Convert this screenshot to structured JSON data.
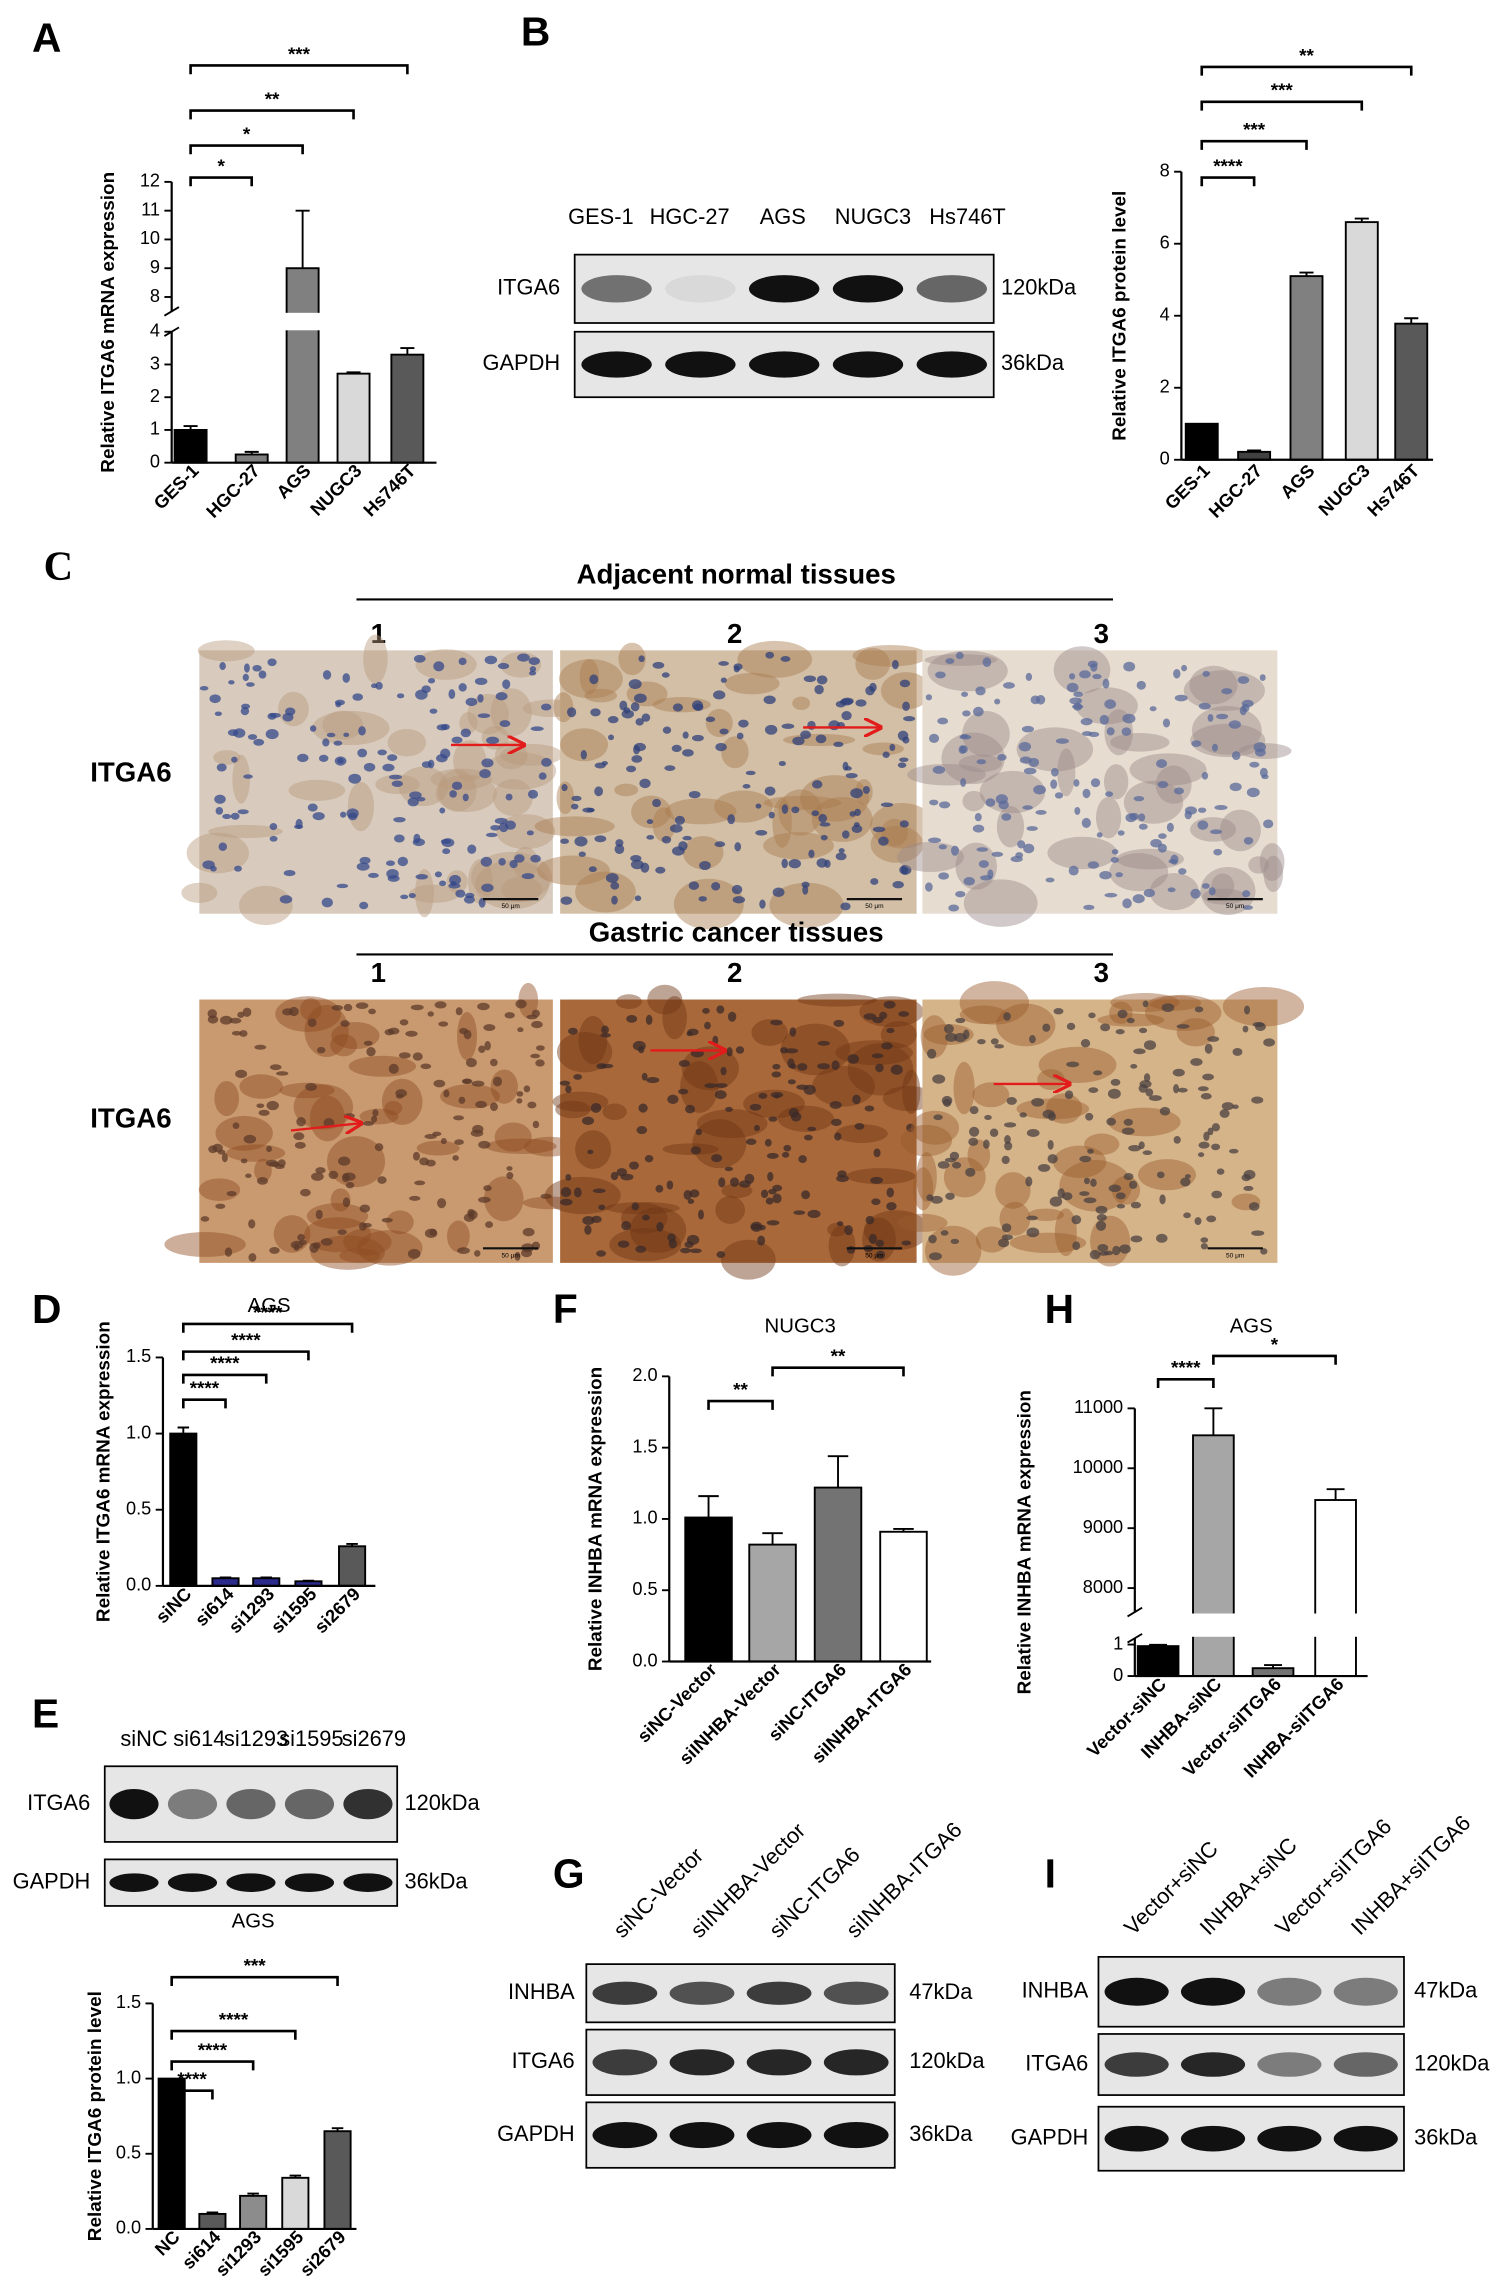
{
  "panel_labels": [
    "A",
    "B",
    "C",
    "D",
    "E",
    "F",
    "G",
    "H",
    "I"
  ],
  "chart_data": [
    {
      "type": "bar",
      "ylabel": "Relative ITGA6 mRNA expression",
      "categories": [
        "GES-1",
        "HGC-27",
        "AGS",
        "NUGC3",
        "Hs746T"
      ],
      "values": [
        1.0,
        0.25,
        9.0,
        2.72,
        3.3
      ],
      "errors": [
        0.12,
        0.08,
        2.0,
        0.04,
        0.2
      ],
      "colors": [
        "#000000",
        "#7f7f7f",
        "#808080",
        "#d9d9d9",
        "#595959"
      ],
      "ylim": [
        0,
        12
      ],
      "ysegments": [
        [
          0,
          4
        ],
        [
          7.5,
          12
        ]
      ],
      "yticks": [
        0,
        1,
        2,
        3,
        4,
        8,
        9,
        10,
        11,
        12
      ],
      "brackets": [
        {
          "pair": [
            "GES-1",
            "HGC-27"
          ],
          "label": "*"
        },
        {
          "pair": [
            "GES-1",
            "AGS"
          ],
          "label": "*"
        },
        {
          "pair": [
            "GES-1",
            "NUGC3"
          ],
          "label": "**"
        },
        {
          "pair": [
            "GES-1",
            "Hs746T"
          ],
          "label": "***"
        }
      ]
    },
    {
      "type": "bar",
      "ylabel": "Relative ITGA6 protein level",
      "categories": [
        "GES-1",
        "HGC-27",
        "AGS",
        "NUGC3",
        "Hs746T"
      ],
      "values": [
        1.0,
        0.22,
        5.1,
        6.6,
        3.78
      ],
      "errors": [
        null,
        0.04,
        0.1,
        0.1,
        0.15
      ],
      "colors": [
        "#000000",
        "#404040",
        "#808080",
        "#d9d9d9",
        "#595959"
      ],
      "ylim": [
        0,
        8
      ],
      "yticks": [
        0,
        2,
        4,
        6,
        8
      ],
      "brackets": [
        {
          "pair": [
            "GES-1",
            "HGC-27"
          ],
          "label": "****"
        },
        {
          "pair": [
            "GES-1",
            "AGS"
          ],
          "label": "***"
        },
        {
          "pair": [
            "GES-1",
            "NUGC3"
          ],
          "label": "***"
        },
        {
          "pair": [
            "GES-1",
            "Hs746T"
          ],
          "label": "**"
        }
      ]
    },
    {
      "type": "bar",
      "title": "AGS",
      "ylabel": "Relative ITGA6 mRNA expression",
      "categories": [
        "siNC",
        "si614",
        "si1293",
        "si1595",
        "si2679"
      ],
      "values": [
        1.0,
        0.05,
        0.05,
        0.03,
        0.26
      ],
      "errors": [
        0.04,
        0.005,
        0.005,
        0.004,
        0.015
      ],
      "colors": [
        "#000000",
        "#2b2b8c",
        "#2b2b8c",
        "#2b2b8c",
        "#595959"
      ],
      "ylim": [
        0,
        1.5
      ],
      "yticks": [
        {
          "value": 0,
          "label": "0.0"
        },
        0.5,
        {
          "value": 1,
          "label": "1.0"
        },
        1.5
      ],
      "brackets": [
        {
          "pair": [
            "siNC",
            "si614"
          ],
          "label": "****"
        },
        {
          "pair": [
            "siNC",
            "si1293"
          ],
          "label": "****"
        },
        {
          "pair": [
            "siNC",
            "si1595"
          ],
          "label": "****"
        },
        {
          "pair": [
            "siNC",
            "si2679"
          ],
          "label": "****"
        }
      ]
    },
    {
      "type": "bar",
      "ylabel": "Relative ITGA6 protein level",
      "categories": [
        "NC",
        "si614",
        "si1293",
        "si1595",
        "si2679"
      ],
      "values": [
        1.0,
        0.1,
        0.22,
        0.34,
        0.65
      ],
      "errors": [
        null,
        0.01,
        0.015,
        0.015,
        0.02
      ],
      "colors": [
        "#000000",
        "#595959",
        "#8c8c8c",
        "#d9d9d9",
        "#595959"
      ],
      "ylim": [
        0,
        1.5
      ],
      "yticks": [
        {
          "value": 0,
          "label": "0.0"
        },
        0.5,
        {
          "value": 1,
          "label": "1.0"
        },
        1.5
      ],
      "brackets": [
        {
          "pair": [
            "NC",
            "si614"
          ],
          "label": "****"
        },
        {
          "pair": [
            "NC",
            "si1293"
          ],
          "label": "****"
        },
        {
          "pair": [
            "NC",
            "si1595"
          ],
          "label": "****"
        },
        {
          "pair": [
            "NC",
            "si2679"
          ],
          "label": "***"
        }
      ]
    },
    {
      "type": "bar",
      "title": "NUGC3",
      "ylabel": "Relative INHBA mRNA expression",
      "categories": [
        "siNC-Vector",
        "siINHBA-Vector",
        "siNC-ITGA6",
        "siINHBA-ITGA6"
      ],
      "values": [
        1.01,
        0.82,
        1.22,
        0.91
      ],
      "errors": [
        0.15,
        0.08,
        0.22,
        0.02
      ],
      "colors": [
        "#000000",
        "#a6a6a6",
        "#737373",
        "#ffffff"
      ],
      "ylim": [
        0,
        2
      ],
      "yticks": [
        {
          "value": 0,
          "label": "0.0"
        },
        0.5,
        {
          "value": 1,
          "label": "1.0"
        },
        1.5,
        {
          "value": 2,
          "label": "2.0"
        }
      ],
      "brackets": [
        {
          "pair": [
            "siNC-Vector",
            "siINHBA-Vector"
          ],
          "label": "**"
        },
        {
          "pair": [
            "siINHBA-Vector",
            "siINHBA-ITGA6"
          ],
          "label": "**"
        }
      ]
    },
    {
      "type": "bar",
      "title": "AGS",
      "ylabel": "Relative INHBA mRNA expression",
      "categories": [
        "Vector-siNC",
        "INHBA-siNC",
        "Vector-siITGA6",
        "INHBA-siITGA6"
      ],
      "values": [
        0.95,
        10550,
        0.25,
        9470
      ],
      "errors": [
        0.04,
        450,
        0.1,
        180
      ],
      "colors": [
        "#000000",
        "#a6a6a6",
        "#737373",
        "#ffffff"
      ],
      "ylim": [
        0,
        11000
      ],
      "ysegments": [
        [
          0,
          1.2
        ],
        [
          7600,
          11000
        ]
      ],
      "yticks": [
        0,
        1,
        8000,
        9000,
        10000,
        11000
      ],
      "brackets": [
        {
          "pair": [
            "Vector-siNC",
            "INHBA-siNC"
          ],
          "label": "****"
        },
        {
          "pair": [
            "INHBA-siNC",
            "INHBA-siITGA6"
          ],
          "label": "*"
        }
      ]
    }
  ],
  "blots": [
    {
      "lanes": [
        "GES-1",
        "HGC-27",
        "AGS",
        "NUGC3",
        "Hs746T"
      ],
      "rows": [
        {
          "name": "ITGA6",
          "size": "120kDa"
        },
        {
          "name": "GAPDH",
          "size": "36kDa"
        }
      ]
    },
    {
      "lanes": [
        "siNC",
        "si614",
        "si1293",
        "si1595",
        "si2679"
      ],
      "rows": [
        {
          "name": "ITGA6",
          "size": "120kDa"
        },
        {
          "name": "GAPDH",
          "size": "36kDa"
        }
      ],
      "caption": "AGS"
    },
    {
      "lanes": [
        "siNC-Vector",
        "siINHBA-Vector",
        "siNC-ITGA6",
        "siINHBA-ITGA6"
      ],
      "rows": [
        {
          "name": "INHBA",
          "size": "47kDa"
        },
        {
          "name": "ITGA6",
          "size": "120kDa"
        },
        {
          "name": "GAPDH",
          "size": "36kDa"
        }
      ]
    },
    {
      "lanes": [
        "Vector+siNC",
        "INHBA+siNC",
        "Vector+siITGA6",
        "INHBA+siITGA6"
      ],
      "rows": [
        {
          "name": "INHBA",
          "size": "47kDa"
        },
        {
          "name": "ITGA6",
          "size": "120kDa"
        },
        {
          "name": "GAPDH",
          "size": "36kDa"
        }
      ]
    }
  ],
  "ihc": {
    "scale_bar": "50 μm",
    "rows": [
      {
        "title": "Adjacent normal tissues",
        "label": "ITGA6",
        "columns": [
          "1",
          "2",
          "3"
        ]
      },
      {
        "title": "Gastric cancer tissues",
        "label": "ITGA6",
        "columns": [
          "1",
          "2",
          "3"
        ]
      }
    ]
  }
}
